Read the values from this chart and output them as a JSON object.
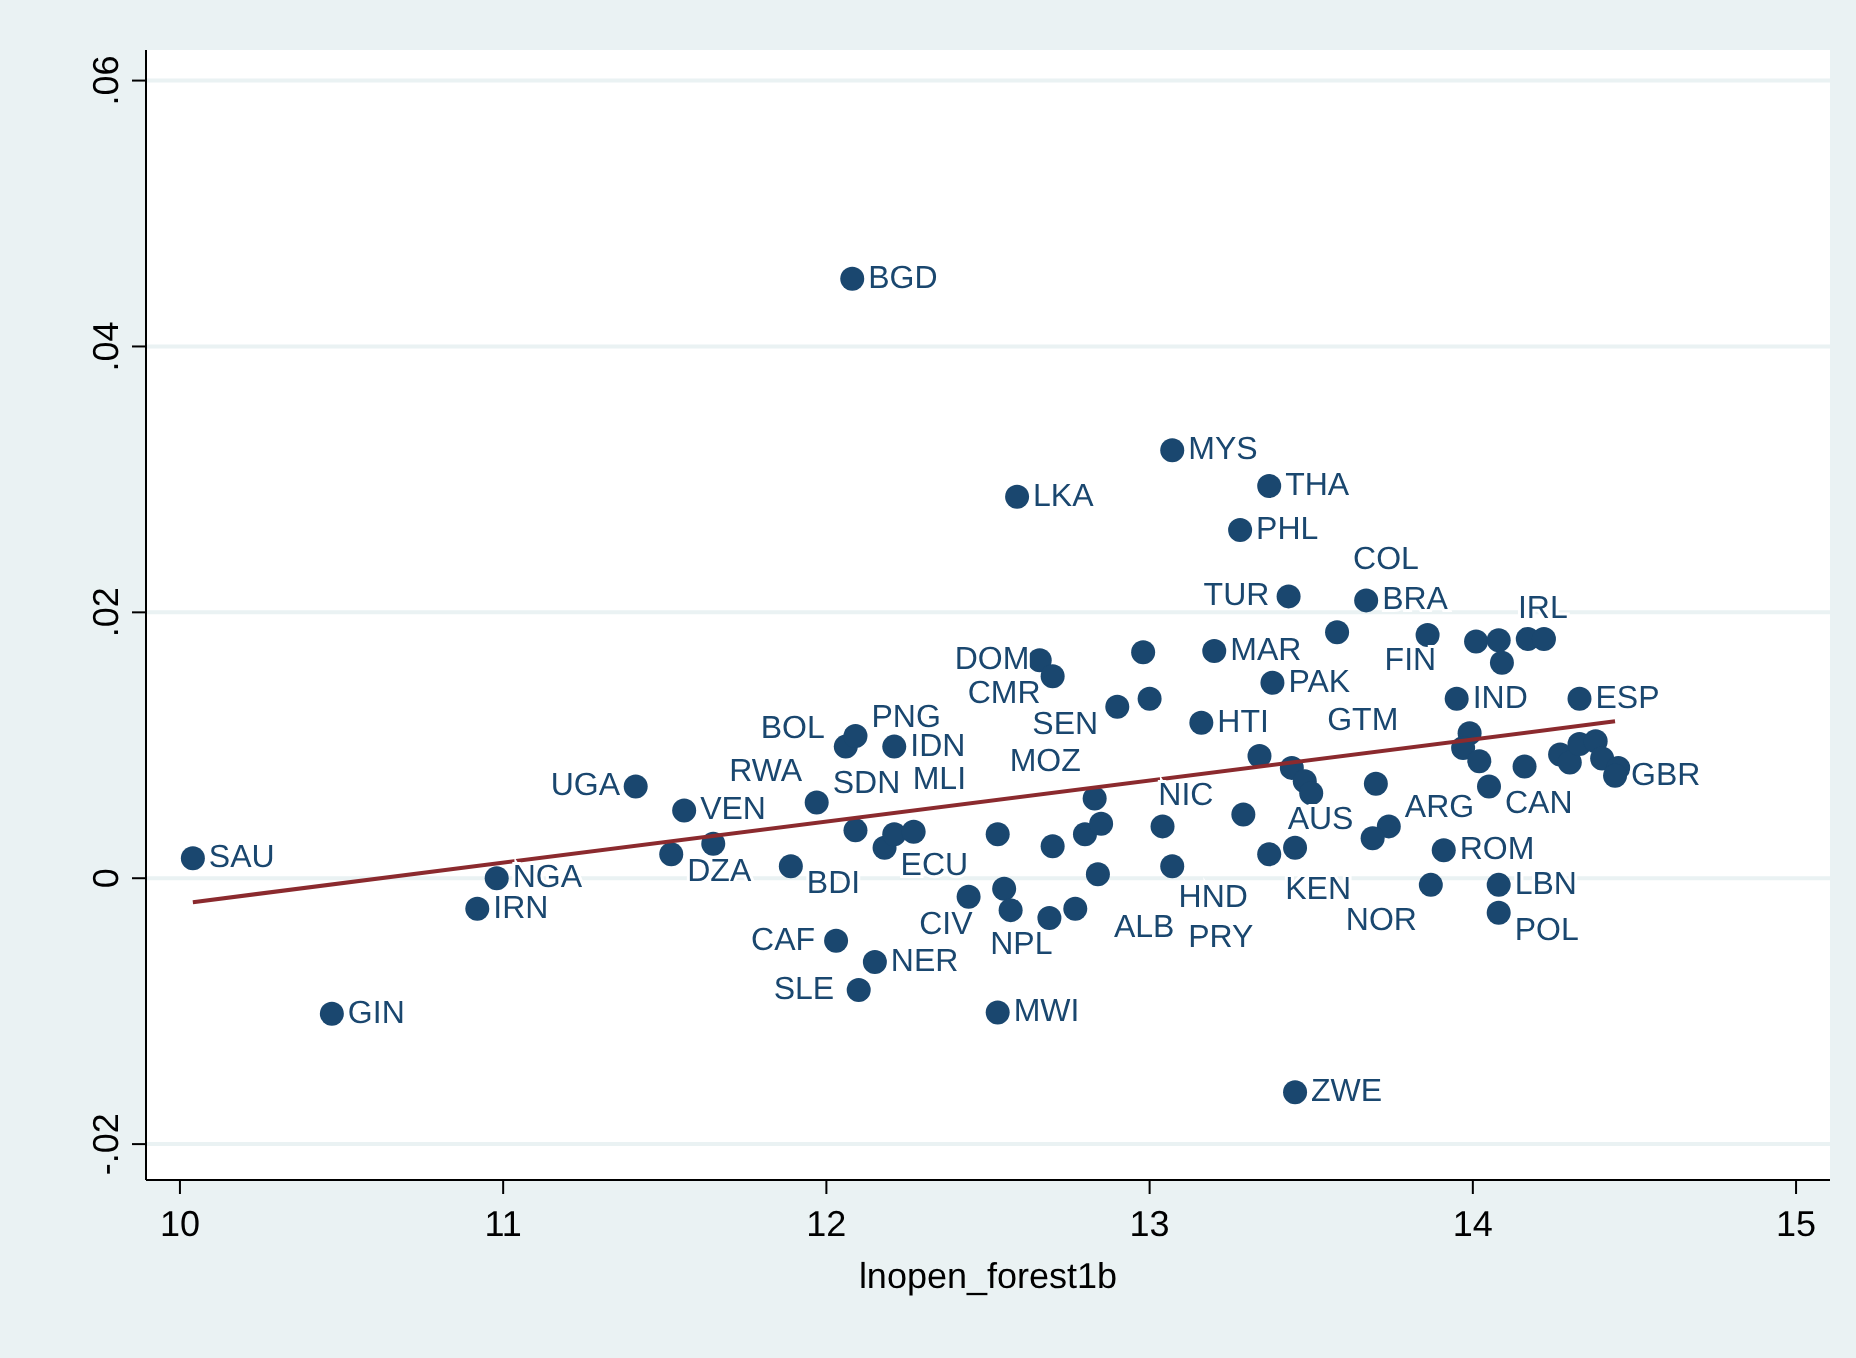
{
  "chart_data": {
    "type": "scatter",
    "xlabel": "lnopen_forest1b",
    "xlim": [
      9.895,
      15.105
    ],
    "ylim": [
      -0.0227,
      0.0623
    ],
    "xticks": [
      10,
      11,
      12,
      13,
      14,
      15
    ],
    "yticks": [
      {
        "value": -0.02,
        "label": "-.02"
      },
      {
        "value": 0,
        "label": "0"
      },
      {
        "value": 0.02,
        "label": ".02"
      },
      {
        "value": 0.04,
        "label": ".04"
      },
      {
        "value": 0.06,
        "label": ".06"
      }
    ],
    "grid": "y",
    "series": [
      {
        "type": "scatter",
        "color": "#1a476f",
        "marker": "circle",
        "x": [
          10.04,
          10.47,
          10.92,
          10.98,
          11.41,
          11.52,
          11.56,
          11.65,
          11.89,
          11.97,
          12.06,
          12.09,
          12.08,
          12.21,
          12.09,
          12.18,
          12.21,
          12.27,
          12.53,
          12.7,
          12.8,
          12.83,
          12.85,
          13.04,
          12.84,
          13.07,
          12.44,
          12.55,
          12.57,
          12.69,
          12.77,
          12.03,
          12.15,
          12.1,
          12.53,
          12.59,
          13.07,
          13.37,
          13.28,
          12.66,
          12.7,
          12.98,
          13.2,
          12.9,
          13.0,
          13.16,
          13.38,
          13.43,
          13.67,
          13.58,
          13.86,
          14.01,
          14.08,
          14.17,
          14.22,
          14.09,
          13.95,
          14.33,
          13.99,
          13.97,
          14.02,
          14.16,
          14.27,
          14.3,
          14.33,
          14.38,
          14.4,
          14.45,
          14.44,
          14.05,
          13.34,
          13.44,
          13.48,
          13.5,
          13.7,
          13.29,
          13.74,
          13.69,
          13.45,
          13.37,
          13.91,
          13.87,
          14.08,
          14.08,
          13.45
        ],
        "values": [
          0.0015,
          -0.0102,
          -0.0023,
          0.0,
          0.0069,
          0.0018,
          0.0051,
          0.0026,
          0.0009,
          0.0057,
          0.0099,
          0.0107,
          0.0451,
          0.0099,
          0.0036,
          0.0023,
          0.0033,
          0.0035,
          0.0033,
          0.0024,
          0.0033,
          0.006,
          0.0041,
          0.0039,
          0.0003,
          0.0009,
          -0.0014,
          -0.0008,
          -0.0024,
          -0.003,
          -0.0023,
          -0.0047,
          -0.0063,
          -0.0084,
          -0.0101,
          0.0287,
          0.0322,
          0.0295,
          0.0262,
          0.0164,
          0.0152,
          0.017,
          0.0171,
          0.0129,
          0.0135,
          0.0117,
          0.0147,
          0.0212,
          0.0209,
          0.0185,
          0.0183,
          0.0178,
          0.0179,
          0.018,
          0.018,
          0.0162,
          0.0135,
          0.0135,
          0.0109,
          0.0098,
          0.0088,
          0.0084,
          0.0093,
          0.0087,
          0.0101,
          0.0103,
          0.009,
          0.0083,
          0.0077,
          0.0069,
          0.0092,
          0.0083,
          0.0073,
          0.0064,
          0.0071,
          0.0048,
          0.0039,
          0.003,
          0.0023,
          0.0018,
          0.0021,
          -0.0005,
          -0.0005,
          -0.0026,
          -0.0161
        ]
      },
      {
        "type": "line",
        "color": "#8b2a2e",
        "marker": "none",
        "x": [
          10.04,
          14.44
        ],
        "values": [
          -0.0018,
          0.0118
        ]
      }
    ],
    "annotations": [
      {
        "text": "SAU",
        "x": 10.04,
        "y": 0.0015
      },
      {
        "text": "GIN",
        "x": 10.47,
        "y": -0.0102
      },
      {
        "text": "IRN",
        "x": 10.92,
        "y": -0.0023
      },
      {
        "text": "NGA",
        "x": 10.98,
        "y": 0.0
      },
      {
        "text": "UGA",
        "x": 11.41,
        "y": 0.0069
      },
      {
        "text": "DZA",
        "x": 11.52,
        "y": 0.0018
      },
      {
        "text": "VEN",
        "x": 11.56,
        "y": 0.0051
      },
      {
        "text": "RWA",
        "x": 11.65,
        "y": 0.0026
      },
      {
        "text": "BDI",
        "x": 11.89,
        "y": 0.0009
      },
      {
        "text": "SDN",
        "x": 11.97,
        "y": 0.0057
      },
      {
        "text": "BOL",
        "x": 12.06,
        "y": 0.0099
      },
      {
        "text": "PNG",
        "x": 12.09,
        "y": 0.0107
      },
      {
        "text": "BGD",
        "x": 12.08,
        "y": 0.0451
      },
      {
        "text": "IDN",
        "x": 12.21,
        "y": 0.0099
      },
      {
        "text": "ECU",
        "x": 12.18,
        "y": 0.0023
      },
      {
        "text": "MLI",
        "x": 12.53,
        "y": 0.0033
      },
      {
        "text": "MOZ",
        "x": 12.83,
        "y": 0.006
      },
      {
        "text": "HND",
        "x": 13.04,
        "y": 0.0039
      },
      {
        "text": "ALB",
        "x": 12.84,
        "y": 0.0003
      },
      {
        "text": "PRY",
        "x": 13.07,
        "y": 0.0009
      },
      {
        "text": "CIV",
        "x": 12.55,
        "y": -0.0008
      },
      {
        "text": "NPL",
        "x": 12.77,
        "y": -0.0023
      },
      {
        "text": "CAF",
        "x": 12.03,
        "y": -0.0047
      },
      {
        "text": "NER",
        "x": 12.15,
        "y": -0.0063
      },
      {
        "text": "SLE",
        "x": 12.1,
        "y": -0.0084
      },
      {
        "text": "MWI",
        "x": 12.53,
        "y": -0.0101
      },
      {
        "text": "LKA",
        "x": 12.59,
        "y": 0.0287
      },
      {
        "text": "MYS",
        "x": 13.07,
        "y": 0.0322
      },
      {
        "text": "THA",
        "x": 13.37,
        "y": 0.0295
      },
      {
        "text": "PHL",
        "x": 13.28,
        "y": 0.0262
      },
      {
        "text": "DOM",
        "x": 12.66,
        "y": 0.0164
      },
      {
        "text": "CMR",
        "x": 12.7,
        "y": 0.0152
      },
      {
        "text": "MAR",
        "x": 13.2,
        "y": 0.0171
      },
      {
        "text": "SEN",
        "x": 12.9,
        "y": 0.0129
      },
      {
        "text": "HTI",
        "x": 13.16,
        "y": 0.0117
      },
      {
        "text": "PAK",
        "x": 13.38,
        "y": 0.0147
      },
      {
        "text": "TUR",
        "x": 13.43,
        "y": 0.0212
      },
      {
        "text": "BRA",
        "x": 13.67,
        "y": 0.0209
      },
      {
        "text": "COL",
        "x": 13.58,
        "y": 0.0185
      },
      {
        "text": "IRL",
        "x": 14.09,
        "y": 0.0162
      },
      {
        "text": "IND",
        "x": 13.95,
        "y": 0.0135
      },
      {
        "text": "ESP",
        "x": 14.33,
        "y": 0.0135
      },
      {
        "text": "FIN",
        "x": 13.99,
        "y": 0.0109
      },
      {
        "text": "GBR",
        "x": 14.44,
        "y": 0.0077
      },
      {
        "text": "CAN",
        "x": 14.05,
        "y": 0.0069
      },
      {
        "text": "GTM",
        "x": 13.5,
        "y": 0.0064
      },
      {
        "text": "NIC",
        "x": 13.29,
        "y": 0.0048
      },
      {
        "text": "ARG",
        "x": 13.74,
        "y": 0.0039
      },
      {
        "text": "AUS",
        "x": 13.69,
        "y": 0.003
      },
      {
        "text": "KEN",
        "x": 13.37,
        "y": 0.0018
      },
      {
        "text": "ROM",
        "x": 13.91,
        "y": 0.0021
      },
      {
        "text": "NOR",
        "x": 13.87,
        "y": -0.0005
      },
      {
        "text": "LBN",
        "x": 14.08,
        "y": -0.0005
      },
      {
        "text": "POL",
        "x": 14.08,
        "y": -0.0026
      },
      {
        "text": "ZWE",
        "x": 13.45,
        "y": -0.0161
      }
    ]
  }
}
